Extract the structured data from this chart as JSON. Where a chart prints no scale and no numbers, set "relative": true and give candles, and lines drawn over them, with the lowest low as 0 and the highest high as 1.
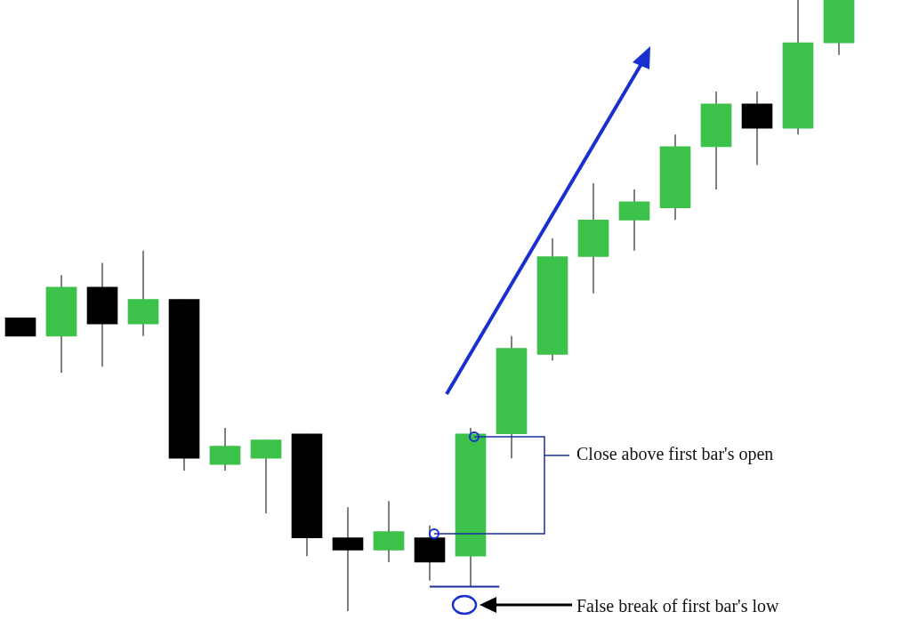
{
  "chart_data": {
    "type": "candlestick",
    "relative": true,
    "categories": [
      null,
      null,
      null,
      null,
      null,
      null,
      null,
      null,
      null,
      null,
      null,
      null,
      null,
      null,
      null,
      null,
      null,
      null,
      null,
      null,
      null
    ],
    "ohlc": [
      [
        0.48,
        0.48,
        0.45,
        0.45
      ],
      [
        0.45,
        0.55,
        0.39,
        0.53
      ],
      [
        0.53,
        0.57,
        0.4,
        0.47
      ],
      [
        0.47,
        0.59,
        0.45,
        0.51
      ],
      [
        0.51,
        0.51,
        0.23,
        0.25
      ],
      [
        0.24,
        0.3,
        0.23,
        0.27
      ],
      [
        0.25,
        0.28,
        0.16,
        0.28
      ],
      [
        0.29,
        0.29,
        0.09,
        0.12
      ],
      [
        0.12,
        0.17,
        0,
        0.1
      ],
      [
        0.1,
        0.18,
        0.08,
        0.13
      ],
      [
        0.12,
        0.14,
        0.05,
        0.08
      ],
      [
        0.09,
        0.3,
        0.04,
        0.29
      ],
      [
        0.29,
        0.45,
        0.25,
        0.43
      ],
      [
        0.42,
        0.61,
        0.41,
        0.58
      ],
      [
        0.58,
        0.7,
        0.52,
        0.64
      ],
      [
        0.64,
        0.69,
        0.59,
        0.67
      ],
      [
        0.66,
        0.78,
        0.64,
        0.76
      ],
      [
        0.76,
        0.85,
        0.69,
        0.83
      ],
      [
        0.83,
        0.85,
        0.73,
        0.79
      ],
      [
        0.79,
        1,
        0.78,
        0.93
      ],
      [
        0.93,
        1,
        0.91,
        1
      ]
    ],
    "colors": [
      "#000000",
      "#3cc14a",
      "#000000",
      "#3cc14a",
      "#000000",
      "#3cc14a",
      "#3cc14a",
      "#000000",
      "#000000",
      "#3cc14a",
      "#000000",
      "#3cc14a",
      "#3cc14a",
      "#3cc14a",
      "#3cc14a",
      "#3cc14a",
      "#3cc14a",
      "#3cc14a",
      "#000000",
      "#3cc14a",
      "#3cc14a"
    ],
    "ref_lines": [
      {
        "axis": "y",
        "value": 0.04,
        "color": "#1a2fa0"
      }
    ],
    "annotations": [
      "Close above first bar's open",
      "False break of first bar's low"
    ]
  }
}
